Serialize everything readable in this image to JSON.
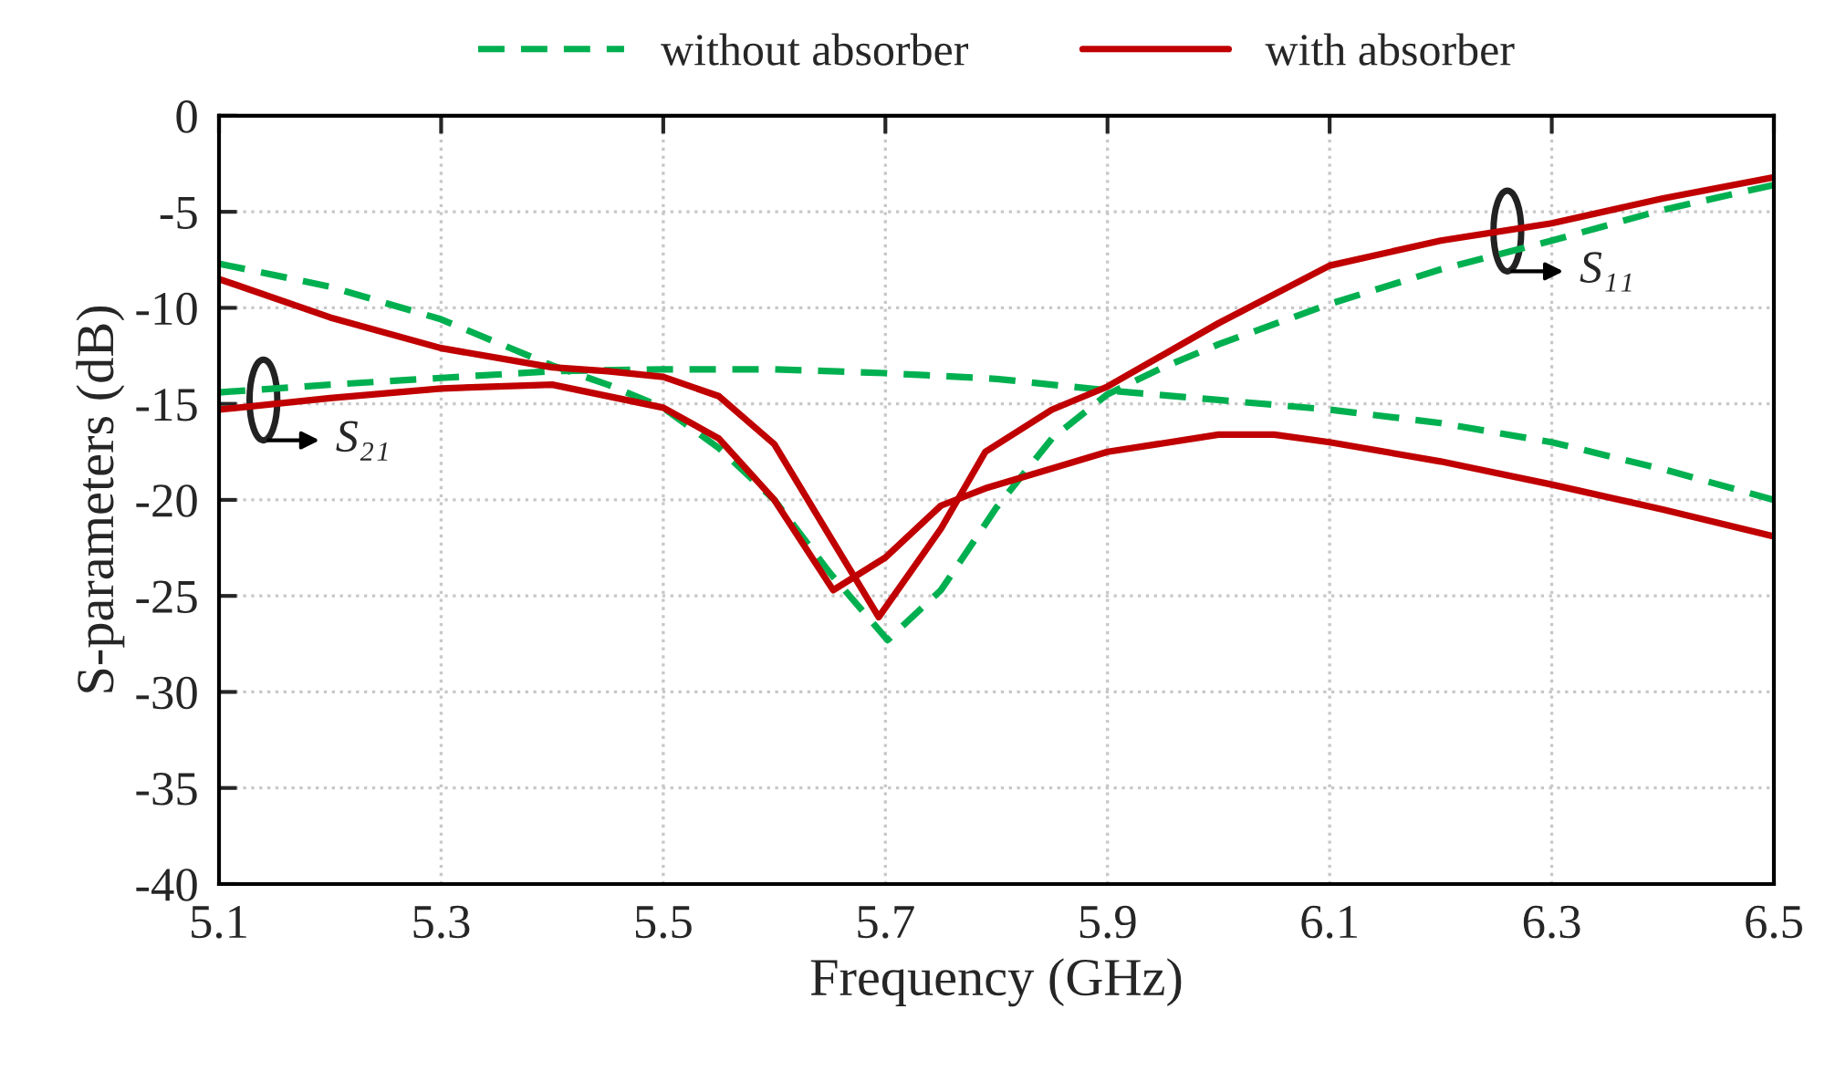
{
  "chart_data": {
    "type": "line",
    "xlabel": "Frequency (GHz)",
    "ylabel": "S-parameters (dB)",
    "xlim": [
      5.1,
      6.5
    ],
    "xticks": [
      5.1,
      5.3,
      5.5,
      5.7,
      5.9,
      6.1,
      6.3,
      6.5
    ],
    "ylim": [
      -40,
      0
    ],
    "yticks": [
      -40,
      -35,
      -30,
      -25,
      -20,
      -15,
      -10,
      -5,
      0
    ],
    "grid": true,
    "legend": "top",
    "marker": "none",
    "series": [
      {
        "name": "without absorber",
        "color": "#00b050",
        "line_style": "dashed",
        "x": [
          5.1,
          5.2,
          5.3,
          5.4,
          5.45,
          5.5,
          5.55,
          5.6,
          5.65,
          5.702,
          5.75,
          5.8,
          5.85,
          5.9,
          5.95,
          6.0,
          6.1,
          6.2,
          6.3,
          6.4,
          6.5
        ],
        "values": [
          -7.7,
          -8.9,
          -10.6,
          -13.0,
          -14.0,
          -15.2,
          -17.3,
          -20.0,
          -23.8,
          -27.3,
          -24.7,
          -20.4,
          -16.8,
          -14.5,
          -13.1,
          -11.9,
          -9.8,
          -8.0,
          -6.5,
          -4.9,
          -3.6
        ]
      },
      {
        "color": "#00b050",
        "line_style": "dashed",
        "x": [
          5.1,
          5.2,
          5.3,
          5.4,
          5.5,
          5.6,
          5.7,
          5.8,
          5.9,
          6.0,
          6.1,
          6.2,
          6.3,
          6.4,
          6.5
        ],
        "values": [
          -14.4,
          -14.0,
          -13.65,
          -13.3,
          -13.2,
          -13.2,
          -13.4,
          -13.7,
          -14.3,
          -14.8,
          -15.3,
          -16.0,
          -17.0,
          -18.4,
          -20.0
        ]
      },
      {
        "name": "with absorber",
        "color": "#c00000",
        "line_style": "solid",
        "x": [
          5.1,
          5.2,
          5.3,
          5.4,
          5.45,
          5.5,
          5.55,
          5.6,
          5.65,
          5.694,
          5.75,
          5.79,
          5.85,
          5.9,
          6.0,
          6.1,
          6.2,
          6.3,
          6.4,
          6.5
        ],
        "values": [
          -8.5,
          -10.5,
          -12.1,
          -13.1,
          -13.3,
          -13.6,
          -14.6,
          -17.1,
          -21.9,
          -26.1,
          -21.5,
          -17.5,
          -15.3,
          -14.1,
          -10.8,
          -7.8,
          -6.5,
          -5.6,
          -4.3,
          -3.2
        ]
      },
      {
        "color": "#c00000",
        "line_style": "solid",
        "x": [
          5.1,
          5.2,
          5.3,
          5.4,
          5.5,
          5.55,
          5.6,
          5.653,
          5.7,
          5.75,
          5.79,
          5.9,
          6.0,
          6.05,
          6.1,
          6.2,
          6.3,
          6.4,
          6.5
        ],
        "values": [
          -15.3,
          -14.7,
          -14.2,
          -14.0,
          -15.2,
          -16.8,
          -20.0,
          -24.7,
          -23.0,
          -20.3,
          -19.4,
          -17.5,
          -16.6,
          -16.6,
          -17.0,
          -18.0,
          -19.2,
          -20.5,
          -21.9
        ]
      }
    ],
    "annotations": [
      {
        "text": "S₁₁",
        "x": 6.26,
        "y": -6.0
      },
      {
        "text": "S₂₁",
        "x": 5.14,
        "y": -14.8
      }
    ]
  }
}
